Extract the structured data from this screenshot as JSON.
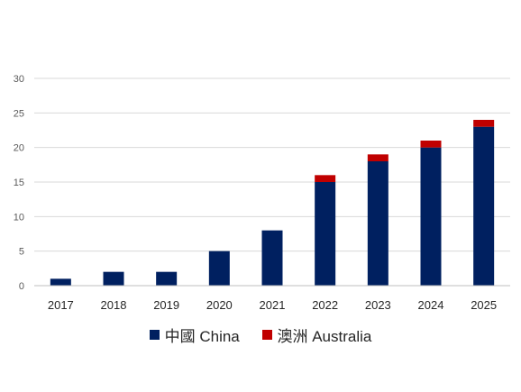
{
  "chart_data": {
    "type": "bar",
    "stacked": true,
    "categories": [
      "2017",
      "2018",
      "2019",
      "2020",
      "2021",
      "2022",
      "2023",
      "2024",
      "2025"
    ],
    "series": [
      {
        "name": "中國 China",
        "color": "#002060",
        "values": [
          1,
          2,
          2,
          5,
          8,
          15,
          18,
          20,
          23
        ]
      },
      {
        "name": "澳洲 Australia",
        "color": "#C00000",
        "values": [
          0,
          0,
          0,
          0,
          0,
          1,
          1,
          1,
          1
        ]
      }
    ],
    "yticks": [
      "0",
      "5",
      "10",
      "15",
      "20",
      "25",
      "30"
    ],
    "ylim": [
      0,
      30
    ],
    "grid": true,
    "legend_position": "bottom"
  }
}
